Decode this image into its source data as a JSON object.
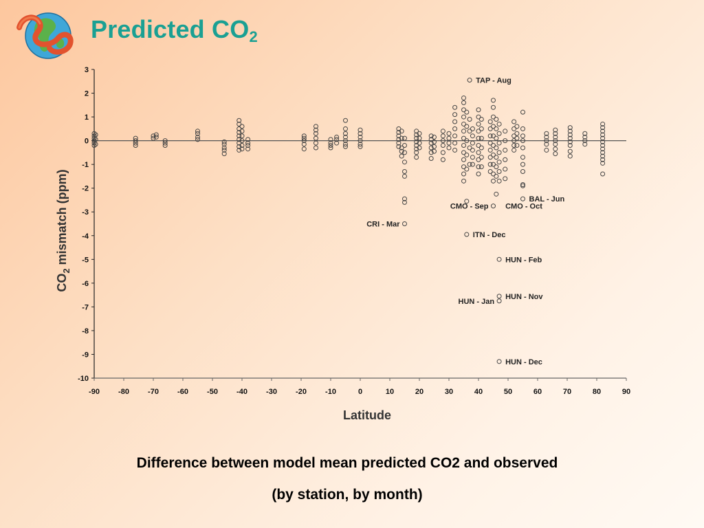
{
  "slide": {
    "title_main": "Predicted CO",
    "title_sub": "2",
    "caption_line1": "Difference between model mean predicted CO2 and observed",
    "caption_line2": "(by station, by month)",
    "logo_icon": "globe-ribbon-logo-icon",
    "title_color": "#1aa093"
  },
  "chart_data": {
    "type": "scatter",
    "xlabel": "Latitude",
    "ylabel_main": "CO",
    "ylabel_sub": "2",
    "ylabel_rest": " mismatch (ppm)",
    "xlim": [
      -90,
      90
    ],
    "ylim": [
      -10,
      3
    ],
    "xticks": [
      -90,
      -80,
      -70,
      -60,
      -50,
      -40,
      -30,
      -20,
      -10,
      0,
      10,
      20,
      30,
      40,
      50,
      60,
      70,
      80,
      90
    ],
    "yticks": [
      3,
      2,
      1,
      0,
      -1,
      -2,
      -3,
      -4,
      -5,
      -6,
      -7,
      -8,
      -9,
      -10
    ],
    "grid": false,
    "marker": "open-circle",
    "points": [
      [
        -90,
        0.3
      ],
      [
        -90,
        0.2
      ],
      [
        -90,
        0.1
      ],
      [
        -90,
        0
      ],
      [
        -90,
        -0.1
      ],
      [
        -90,
        -0.2
      ],
      [
        -89.5,
        0.25
      ],
      [
        -89.5,
        0.05
      ],
      [
        -89.5,
        -0.15
      ],
      [
        -76,
        0.1
      ],
      [
        -76,
        0
      ],
      [
        -76,
        -0.1
      ],
      [
        -76,
        -0.2
      ],
      [
        -70,
        0.1
      ],
      [
        -70,
        0.2
      ],
      [
        -69,
        0.25
      ],
      [
        -69,
        0.15
      ],
      [
        -66,
        0
      ],
      [
        -66,
        -0.1
      ],
      [
        -66,
        -0.2
      ],
      [
        -55,
        0.4
      ],
      [
        -55,
        0.3
      ],
      [
        -55,
        0.15
      ],
      [
        -55,
        0.05
      ],
      [
        -46,
        -0.05
      ],
      [
        -46,
        -0.15
      ],
      [
        -46,
        -0.3
      ],
      [
        -46,
        -0.4
      ],
      [
        -46,
        -0.55
      ],
      [
        -41,
        0.85
      ],
      [
        -41,
        0.7
      ],
      [
        -41,
        0.5
      ],
      [
        -41,
        0.35
      ],
      [
        -41,
        0.2
      ],
      [
        -41,
        0.05
      ],
      [
        -41,
        -0.1
      ],
      [
        -41,
        -0.25
      ],
      [
        -41,
        -0.4
      ],
      [
        -40,
        0.6
      ],
      [
        -40,
        0.4
      ],
      [
        -40,
        0.2
      ],
      [
        -40,
        0
      ],
      [
        -40,
        -0.2
      ],
      [
        -40,
        -0.35
      ],
      [
        -38,
        0.05
      ],
      [
        -38,
        -0.1
      ],
      [
        -38,
        -0.2
      ],
      [
        -38,
        -0.35
      ],
      [
        -19,
        0.2
      ],
      [
        -19,
        0.1
      ],
      [
        -19,
        0
      ],
      [
        -19,
        -0.15
      ],
      [
        -19,
        -0.35
      ],
      [
        -15,
        0.6
      ],
      [
        -15,
        0.45
      ],
      [
        -15,
        0.3
      ],
      [
        -15,
        0.1
      ],
      [
        -15,
        -0.1
      ],
      [
        -15,
        -0.3
      ],
      [
        -10,
        0.05
      ],
      [
        -10,
        -0.1
      ],
      [
        -10,
        -0.2
      ],
      [
        -10,
        -0.3
      ],
      [
        -8,
        0.15
      ],
      [
        -8,
        0.05
      ],
      [
        -8,
        -0.1
      ],
      [
        -5,
        0.85
      ],
      [
        -5,
        0.5
      ],
      [
        -5,
        0.3
      ],
      [
        -5,
        0.15
      ],
      [
        -5,
        0
      ],
      [
        -5,
        -0.15
      ],
      [
        -5,
        -0.25
      ],
      [
        0,
        0.45
      ],
      [
        0,
        0.3
      ],
      [
        0,
        0.15
      ],
      [
        0,
        0
      ],
      [
        0,
        -0.15
      ],
      [
        0,
        -0.25
      ],
      [
        13,
        0.5
      ],
      [
        13,
        0.35
      ],
      [
        13,
        0.2
      ],
      [
        13,
        0.05
      ],
      [
        13,
        -0.1
      ],
      [
        13,
        -0.25
      ],
      [
        14,
        0.4
      ],
      [
        14,
        0.1
      ],
      [
        14,
        -0.3
      ],
      [
        14,
        -0.45
      ],
      [
        14,
        -0.65
      ],
      [
        15,
        0.1
      ],
      [
        15,
        -0.2
      ],
      [
        15,
        -0.5
      ],
      [
        15,
        -0.9
      ],
      [
        15,
        -1.3
      ],
      [
        15,
        -1.5
      ],
      [
        15,
        -2.45
      ],
      [
        15,
        -2.6
      ],
      [
        15,
        -3.5
      ],
      [
        19,
        0.4
      ],
      [
        19,
        0.25
      ],
      [
        19,
        0.1
      ],
      [
        19,
        -0.05
      ],
      [
        19,
        -0.2
      ],
      [
        19,
        -0.35
      ],
      [
        19,
        -0.5
      ],
      [
        19,
        -0.7
      ],
      [
        20,
        0.3
      ],
      [
        20,
        0.1
      ],
      [
        20,
        -0.1
      ],
      [
        20,
        -0.3
      ],
      [
        24,
        0.2
      ],
      [
        24,
        0.05
      ],
      [
        24,
        -0.1
      ],
      [
        24,
        -0.3
      ],
      [
        24,
        -0.5
      ],
      [
        24,
        -0.75
      ],
      [
        25,
        0.15
      ],
      [
        25,
        -0.05
      ],
      [
        25,
        -0.25
      ],
      [
        25,
        -0.45
      ],
      [
        28,
        0.4
      ],
      [
        28,
        0.2
      ],
      [
        28,
        0
      ],
      [
        28,
        -0.2
      ],
      [
        28,
        -0.5
      ],
      [
        28,
        -0.8
      ],
      [
        30,
        0.3
      ],
      [
        30,
        0.1
      ],
      [
        30,
        -0.1
      ],
      [
        30,
        -0.3
      ],
      [
        32,
        1.4
      ],
      [
        32,
        1.1
      ],
      [
        32,
        0.8
      ],
      [
        32,
        0.5
      ],
      [
        32,
        0.2
      ],
      [
        32,
        -0.1
      ],
      [
        32,
        -0.4
      ],
      [
        35,
        1.8
      ],
      [
        35,
        1.6
      ],
      [
        35,
        1.3
      ],
      [
        35,
        1
      ],
      [
        35,
        0.7
      ],
      [
        35,
        0.4
      ],
      [
        35,
        0.1
      ],
      [
        35,
        -0.2
      ],
      [
        35,
        -0.5
      ],
      [
        35,
        -0.8
      ],
      [
        35,
        -1.1
      ],
      [
        35,
        -1.4
      ],
      [
        35,
        -1.7
      ],
      [
        36,
        1.2
      ],
      [
        36,
        0.6
      ],
      [
        36,
        0
      ],
      [
        36,
        -0.6
      ],
      [
        36,
        -1.2
      ],
      [
        36,
        -2.55
      ],
      [
        36,
        -3.95
      ],
      [
        37,
        2.55
      ],
      [
        37,
        0.9
      ],
      [
        37,
        0.4
      ],
      [
        37,
        -0.3
      ],
      [
        37,
        -1
      ],
      [
        38,
        0.5
      ],
      [
        38,
        0.2
      ],
      [
        38,
        -0.1
      ],
      [
        38,
        -0.4
      ],
      [
        38,
        -0.7
      ],
      [
        38,
        -1
      ],
      [
        40,
        1.3
      ],
      [
        40,
        1
      ],
      [
        40,
        0.7
      ],
      [
        40,
        0.4
      ],
      [
        40,
        0.1
      ],
      [
        40,
        -0.2
      ],
      [
        40,
        -0.5
      ],
      [
        40,
        -0.8
      ],
      [
        40,
        -1.1
      ],
      [
        40,
        -1.4
      ],
      [
        41,
        0.9
      ],
      [
        41,
        0.5
      ],
      [
        41,
        0.1
      ],
      [
        41,
        -0.3
      ],
      [
        41,
        -0.7
      ],
      [
        41,
        -1.1
      ],
      [
        44,
        0.8
      ],
      [
        44,
        0.5
      ],
      [
        44,
        0.2
      ],
      [
        44,
        -0.1
      ],
      [
        44,
        -0.4
      ],
      [
        44,
        -0.7
      ],
      [
        44,
        -1
      ],
      [
        44,
        -1.3
      ],
      [
        45,
        1.7
      ],
      [
        45,
        1.4
      ],
      [
        45,
        1
      ],
      [
        45,
        0.6
      ],
      [
        45,
        0.2
      ],
      [
        45,
        -0.2
      ],
      [
        45,
        -0.6
      ],
      [
        45,
        -1
      ],
      [
        45,
        -1.4
      ],
      [
        45,
        -1.7
      ],
      [
        45,
        -2.75
      ],
      [
        46,
        0.9
      ],
      [
        46,
        0.5
      ],
      [
        46,
        0.1
      ],
      [
        46,
        -0.3
      ],
      [
        46,
        -0.7
      ],
      [
        46,
        -1.1
      ],
      [
        46,
        -1.5
      ],
      [
        46,
        -2.25
      ],
      [
        47,
        0.7
      ],
      [
        47,
        0.3
      ],
      [
        47,
        -0.1
      ],
      [
        47,
        -0.5
      ],
      [
        47,
        -0.9
      ],
      [
        47,
        -1.3
      ],
      [
        47,
        -1.7
      ],
      [
        47,
        -5
      ],
      [
        47,
        -6.55
      ],
      [
        47,
        -6.75
      ],
      [
        47,
        -9.3
      ],
      [
        49,
        0.4
      ],
      [
        49,
        0
      ],
      [
        49,
        -0.4
      ],
      [
        49,
        -0.8
      ],
      [
        49,
        -1.2
      ],
      [
        49,
        -1.6
      ],
      [
        52,
        0.8
      ],
      [
        52,
        0.5
      ],
      [
        52,
        0.2
      ],
      [
        52,
        0
      ],
      [
        52,
        -0.2
      ],
      [
        52,
        -0.4
      ],
      [
        53,
        0.6
      ],
      [
        53,
        0.3
      ],
      [
        53,
        0.1
      ],
      [
        53,
        -0.2
      ],
      [
        55,
        1.2
      ],
      [
        55,
        0.5
      ],
      [
        55,
        0.2
      ],
      [
        55,
        0
      ],
      [
        55,
        -0.3
      ],
      [
        55,
        -0.7
      ],
      [
        55,
        -1
      ],
      [
        55,
        -1.3
      ],
      [
        55,
        -1.85
      ],
      [
        55,
        -1.9
      ],
      [
        55,
        -2.45
      ],
      [
        63,
        0.3
      ],
      [
        63,
        0.15
      ],
      [
        63,
        0
      ],
      [
        63,
        -0.15
      ],
      [
        63,
        -0.4
      ],
      [
        66,
        0.45
      ],
      [
        66,
        0.3
      ],
      [
        66,
        0.15
      ],
      [
        66,
        0
      ],
      [
        66,
        -0.15
      ],
      [
        66,
        -0.35
      ],
      [
        66,
        -0.55
      ],
      [
        71,
        0.55
      ],
      [
        71,
        0.4
      ],
      [
        71,
        0.25
      ],
      [
        71,
        0.1
      ],
      [
        71,
        -0.05
      ],
      [
        71,
        -0.2
      ],
      [
        71,
        -0.45
      ],
      [
        71,
        -0.65
      ],
      [
        76,
        0.3
      ],
      [
        76,
        0.15
      ],
      [
        76,
        0
      ],
      [
        76,
        -0.15
      ],
      [
        82,
        0.7
      ],
      [
        82,
        0.55
      ],
      [
        82,
        0.4
      ],
      [
        82,
        0.25
      ],
      [
        82,
        0.1
      ],
      [
        82,
        -0.05
      ],
      [
        82,
        -0.2
      ],
      [
        82,
        -0.35
      ],
      [
        82,
        -0.5
      ],
      [
        82,
        -0.65
      ],
      [
        82,
        -0.8
      ],
      [
        82,
        -0.95
      ],
      [
        82,
        -1.4
      ]
    ],
    "annotations": [
      {
        "text": "TAP - Aug",
        "x": 37,
        "y": 2.55,
        "side": "right"
      },
      {
        "text": "BAL - Jun",
        "x": 55,
        "y": -2.45,
        "side": "right"
      },
      {
        "text": "CMO - Sep",
        "x": 45,
        "y": -2.75,
        "side": "left"
      },
      {
        "text": "CMO - Oct",
        "x": 47,
        "y": -2.75,
        "side": "right"
      },
      {
        "text": "CRI - Mar",
        "x": 15,
        "y": -3.5,
        "side": "left"
      },
      {
        "text": "ITN - Dec",
        "x": 36,
        "y": -3.95,
        "side": "right"
      },
      {
        "text": "HUN - Feb",
        "x": 47,
        "y": -5,
        "side": "right"
      },
      {
        "text": "HUN - Nov",
        "x": 47,
        "y": -6.55,
        "side": "right"
      },
      {
        "text": "HUN - Jan",
        "x": 47,
        "y": -6.75,
        "side": "left"
      },
      {
        "text": "HUN - Dec",
        "x": 47,
        "y": -9.3,
        "side": "right"
      }
    ]
  }
}
